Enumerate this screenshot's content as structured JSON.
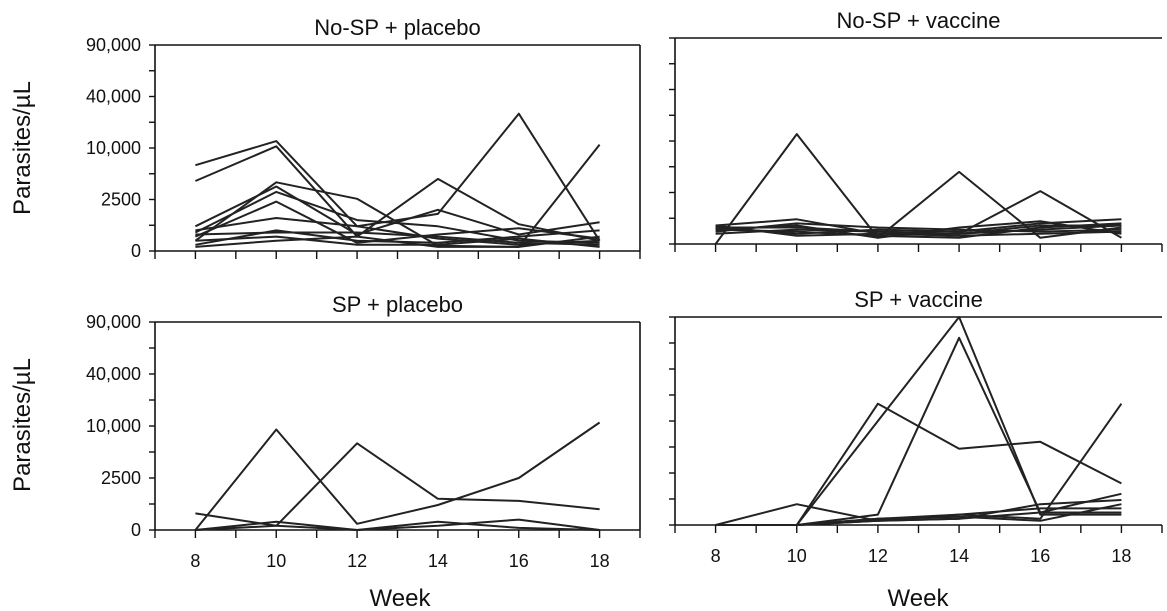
{
  "figure": {
    "ylabel": "Parasites/µL",
    "xlabel": "Week"
  },
  "chart_data": [
    {
      "type": "line",
      "title": "No-SP + placebo",
      "x": [
        8,
        10,
        12,
        14,
        16,
        18
      ],
      "x_tick_labels": [],
      "y_tick_values": [
        0,
        2500,
        10000,
        40000,
        90000
      ],
      "y_tick_labels": [
        "0",
        "2500",
        "10,000",
        "40,000",
        "90,000"
      ],
      "y_scale": "nonlinear (ticks evenly spaced at 0, 2500, 10,000, 40,000, 90,000)",
      "frame": "left-bottom-right-top",
      "series": [
        {
          "values": [
            7500,
            14000,
            1200,
            1800,
            30000,
            500
          ]
        },
        {
          "values": [
            5200,
            11000,
            700,
            5500,
            1300,
            500
          ]
        },
        {
          "values": [
            500,
            5000,
            2600,
            250,
            200,
            12000
          ]
        },
        {
          "values": [
            1200,
            4400,
            800,
            2000,
            800,
            1400
          ]
        },
        {
          "values": [
            900,
            3600,
            1500,
            1200,
            500,
            400
          ]
        },
        {
          "values": [
            700,
            2400,
            400,
            800,
            1100,
            600
          ]
        },
        {
          "values": [
            1000,
            1600,
            1200,
            600,
            300,
            500
          ]
        },
        {
          "values": [
            300,
            1000,
            500,
            400,
            700,
            1000
          ]
        },
        {
          "values": [
            800,
            900,
            900,
            700,
            400,
            300
          ]
        },
        {
          "values": [
            500,
            700,
            300,
            300,
            600,
            200
          ]
        },
        {
          "values": [
            200,
            500,
            700,
            200,
            200,
            700
          ]
        }
      ]
    },
    {
      "type": "line",
      "title": "No-SP + vaccine",
      "x": [
        8,
        10,
        12,
        14,
        16,
        18
      ],
      "x_tick_labels": [],
      "y_tick_values": [
        0,
        2500,
        10000,
        40000,
        90000
      ],
      "y_tick_labels": [],
      "y_scale": "nonlinear (ticks evenly spaced at 0, 2500, 10,000, 40,000, 90,000)",
      "frame": "left-bottom-top",
      "series": [
        {
          "values": [
            0,
            14000,
            300,
            5500,
            300,
            800
          ]
        },
        {
          "values": [
            800,
            800,
            600,
            500,
            2700,
            300
          ]
        },
        {
          "values": [
            900,
            1200,
            500,
            500,
            900,
            900
          ]
        },
        {
          "values": [
            700,
            600,
            400,
            300,
            800,
            1000
          ]
        },
        {
          "values": [
            600,
            1000,
            800,
            700,
            600,
            700
          ]
        },
        {
          "values": [
            800,
            500,
            700,
            600,
            1000,
            1200
          ]
        },
        {
          "values": [
            500,
            700,
            600,
            500,
            700,
            900
          ]
        },
        {
          "values": [
            900,
            400,
            500,
            400,
            500,
            600
          ]
        },
        {
          "values": [
            700,
            900,
            300,
            800,
            1100,
            500
          ]
        }
      ]
    },
    {
      "type": "line",
      "title": "SP + placebo",
      "x": [
        8,
        10,
        12,
        14,
        16,
        18
      ],
      "x_tick_labels": [
        "8",
        "10",
        "12",
        "14",
        "16",
        "18"
      ],
      "y_tick_values": [
        0,
        2500,
        10000,
        40000,
        90000
      ],
      "y_tick_labels": [
        "0",
        "2500",
        "10,000",
        "40,000",
        "90,000"
      ],
      "y_scale": "nonlinear (ticks evenly spaced at 0, 2500, 10,000, 40,000, 90,000)",
      "frame": "left-bottom-right-top",
      "series": [
        {
          "values": [
            0,
            9500,
            300,
            1200,
            2500,
            12000
          ]
        },
        {
          "values": [
            0,
            200,
            7500,
            1500,
            1400,
            1000
          ]
        },
        {
          "values": [
            800,
            200,
            0,
            400,
            100,
            0
          ]
        },
        {
          "values": [
            0,
            400,
            0,
            200,
            500,
            0
          ]
        }
      ]
    },
    {
      "type": "line",
      "title": "SP + vaccine",
      "x": [
        8,
        10,
        12,
        14,
        16,
        18
      ],
      "x_tick_labels": [
        "8",
        "10",
        "12",
        "14",
        "16",
        "18"
      ],
      "y_tick_values": [
        0,
        2500,
        10000,
        40000,
        90000
      ],
      "y_tick_labels": [],
      "y_scale": "nonlinear (ticks evenly spaced at 0, 2500, 10,000, 40,000, 90,000)",
      "frame": "left-bottom-top",
      "series": [
        {
          "values": [
            0,
            0,
            10000,
            90000,
            500,
            500
          ]
        },
        {
          "values": [
            0,
            0,
            500,
            70000,
            600,
            1500
          ]
        },
        {
          "values": [
            0,
            0,
            20000,
            6000,
            7000,
            2000
          ]
        },
        {
          "values": [
            0,
            0,
            300,
            500,
            300,
            20000
          ]
        },
        {
          "values": [
            0,
            1000,
            200,
            500,
            800,
            800
          ]
        },
        {
          "values": [
            0,
            0,
            200,
            300,
            1000,
            1200
          ]
        },
        {
          "values": [
            0,
            0,
            200,
            300,
            600,
            600
          ]
        },
        {
          "values": [
            0,
            0,
            300,
            400,
            200,
            1000
          ]
        }
      ]
    }
  ]
}
